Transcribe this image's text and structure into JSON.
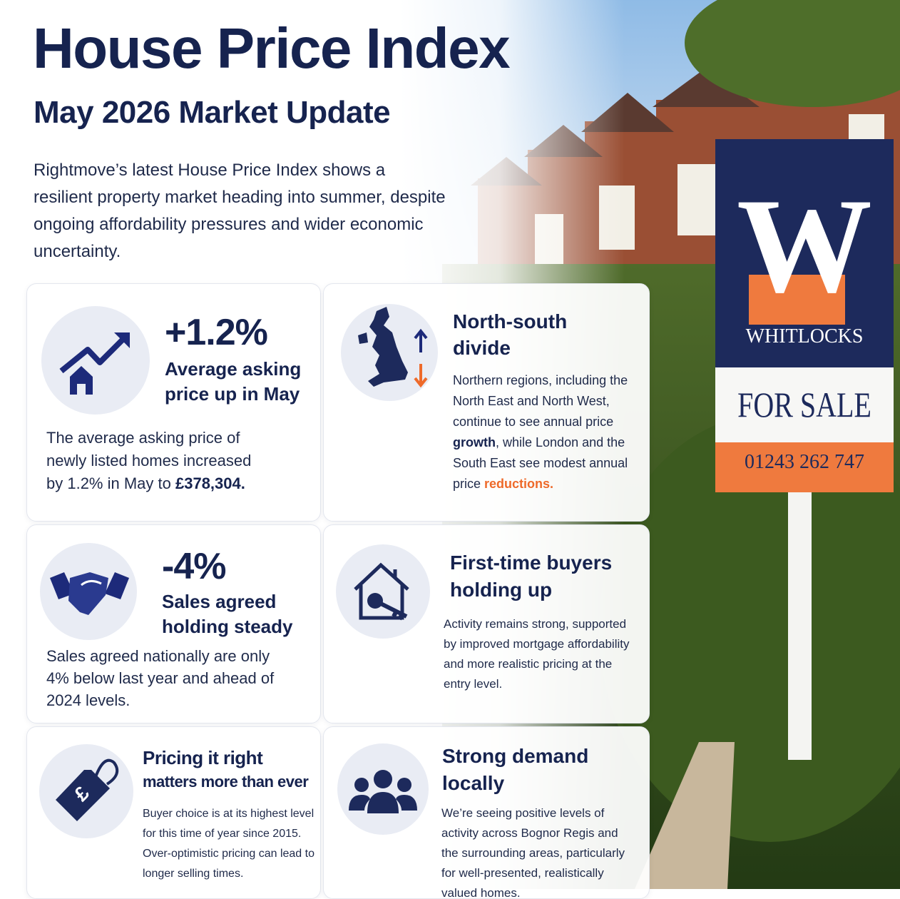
{
  "header": {
    "title": "House Price Index",
    "subtitle": "May 2026 Market Update",
    "intro": "Rightmove’s latest House Price Index shows a resilient property market heading into summer, despite ongoing affordability pressures and wider economic uncertainty."
  },
  "cards": [
    {
      "stat": "+1.2%",
      "heading": [
        "Average asking",
        "price up in May"
      ],
      "body": [
        {
          "text": "The average asking price of newly listed homes increased by 1.2% in May to ",
          "style": "plain"
        },
        {
          "text": "£378,304.",
          "style": "bold"
        }
      ]
    },
    {
      "heading": [
        "North-south",
        "divide"
      ],
      "body": [
        {
          "text": "Northern regions, including the North East and North West, continue to see annual price ",
          "style": "plain"
        },
        {
          "text": "growth",
          "style": "bold"
        },
        {
          "text": ", while London and the South East see modest annual price ",
          "style": "plain"
        },
        {
          "text": "reductions.",
          "style": "orange"
        }
      ]
    },
    {
      "stat": "-4%",
      "heading": [
        "Sales agreed",
        "holding steady"
      ],
      "body": [
        {
          "text": "Sales agreed nationally are only 4% below last year and ahead of 2024 levels.",
          "style": "plain"
        }
      ]
    },
    {
      "heading": [
        "First-time buyers",
        "holding up"
      ],
      "body": [
        {
          "text": "Activity remains strong, supported by improved mortgage affordability and more realistic pricing at the entry level.",
          "style": "plain"
        }
      ]
    },
    {
      "heading": [
        "Pricing it right",
        "matters more than ever"
      ],
      "body": [
        {
          "text": "Buyer choice is at its highest level for this time of year since 2015. Over-optimistic pricing can lead to longer selling times.",
          "style": "plain"
        }
      ]
    },
    {
      "heading": [
        "Strong demand",
        "locally"
      ],
      "body": [
        {
          "text": "We’re seeing positive levels of activity across Bognor Regis and the surrounding areas, particularly for well-presented, realistically valued homes.",
          "style": "plain"
        }
      ]
    }
  ],
  "sign": {
    "letter": "W",
    "brand": "WHITLOCKS",
    "label": "FOR SALE",
    "phone": "01243 262 747"
  }
}
